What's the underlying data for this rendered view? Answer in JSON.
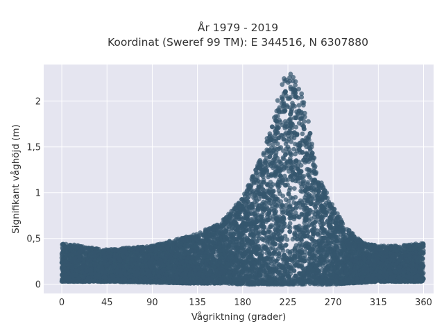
{
  "chart_data": {
    "type": "scatter",
    "title_line1": "År 1979 - 2019",
    "title_line2": "Koordinat (Sweref 99 TM): E 344516, N 6307880",
    "xlabel": "Vågriktning (grader)",
    "ylabel": "Signifikant våghöjd (m)",
    "xlim": [
      -18,
      370
    ],
    "ylim": [
      -0.1,
      2.4
    ],
    "x_ticks": [
      0,
      45,
      90,
      135,
      180,
      225,
      270,
      315,
      360
    ],
    "x_tick_labels": [
      "0",
      "45",
      "90",
      "135",
      "180",
      "225",
      "270",
      "315",
      "360"
    ],
    "y_ticks": [
      0,
      0.5,
      1,
      1.5,
      2
    ],
    "y_tick_labels": [
      "0",
      "0,5",
      "1",
      "1,5",
      "2"
    ],
    "grid": true,
    "marker_color": "#34566e",
    "background_color": "#e5e5f0",
    "envelope": {
      "x": [
        0,
        45,
        90,
        135,
        160,
        180,
        195,
        210,
        220,
        225,
        235,
        245,
        255,
        270,
        285,
        300,
        315,
        330,
        360
      ],
      "y_max": [
        0.45,
        0.38,
        0.42,
        0.55,
        0.7,
        0.95,
        1.3,
        1.8,
        2.25,
        2.33,
        2.25,
        1.8,
        1.2,
        0.85,
        0.6,
        0.45,
        0.42,
        0.42,
        0.45
      ],
      "y_min": [
        0.03,
        0.03,
        0.02,
        0.01,
        0.01,
        0.0,
        0.0,
        0.0,
        0.0,
        0.0,
        0.0,
        0.0,
        0.0,
        0.0,
        0.01,
        0.02,
        0.03,
        0.03,
        0.03
      ]
    }
  }
}
